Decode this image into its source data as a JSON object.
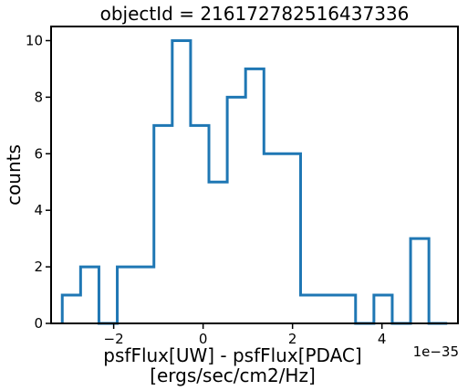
{
  "chart_data": {
    "type": "histogram",
    "title": "objectId = 216172782516437336",
    "xlabel_line1": "psfFlux[UW] - psfFlux[PDAC]",
    "xlabel_line2": "[ergs/sec/cm2/Hz]",
    "ylabel": "counts",
    "x_offset_label": "1e−35",
    "xlim": [
      -3.4,
      5.7
    ],
    "ylim": [
      0,
      10.5
    ],
    "x_ticks": [
      -2,
      0,
      2,
      4
    ],
    "x_tick_labels": [
      "−2",
      "0",
      "2",
      "4"
    ],
    "y_ticks": [
      0,
      2,
      4,
      6,
      8,
      10
    ],
    "y_tick_labels": [
      "0",
      "2",
      "4",
      "6",
      "8",
      "10"
    ],
    "bin_edges": [
      -3.15,
      -2.74,
      -2.33,
      -1.92,
      -1.51,
      -1.1,
      -0.69,
      -0.28,
      0.13,
      0.54,
      0.95,
      1.36,
      1.77,
      2.18,
      2.59,
      3.0,
      3.41,
      3.82,
      4.23,
      4.64,
      5.05,
      5.46
    ],
    "counts": [
      1,
      2,
      0,
      2,
      2,
      7,
      10,
      7,
      5,
      8,
      9,
      6,
      6,
      1,
      1,
      1,
      0,
      1,
      0,
      3,
      0
    ],
    "line_color": "#1f77b4",
    "grid": false
  }
}
